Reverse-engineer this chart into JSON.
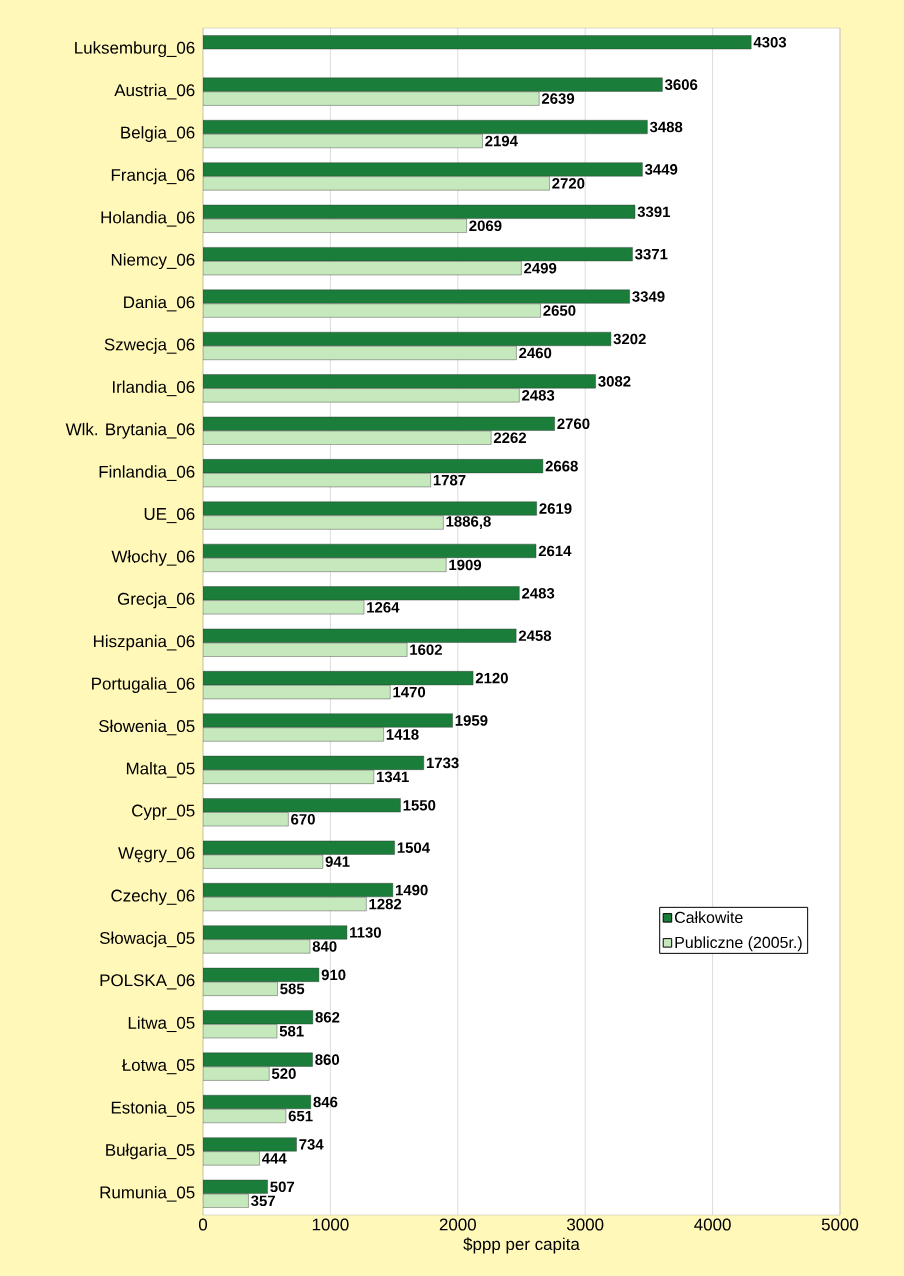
{
  "chart_data": {
    "type": "bar",
    "orientation": "horizontal",
    "categories": [
      "Luksemburg_06",
      "Austria_06",
      "Belgia_06",
      "Francja_06",
      "Holandia_06",
      "Niemcy_06",
      "Dania_06",
      "Szwecja_06",
      "Irlandia_06",
      "Wlk. Brytania_06",
      "Finlandia_06",
      "UE_06",
      "Włochy_06",
      "Grecja_06",
      "Hiszpania_06",
      "Portugalia_06",
      "Słowenia_05",
      "Malta_05",
      "Cypr_05",
      "Węgry_06",
      "Czechy_06",
      "Słowacja_05",
      "POLSKA_06",
      "Litwa_05",
      "Łotwa_05",
      "Estonia_05",
      "Bułgaria_05",
      "Rumunia_05"
    ],
    "series": [
      {
        "name": "Całkowite",
        "color": "#1b7d3a",
        "values": [
          4303,
          3606,
          3488,
          3449,
          3391,
          3371,
          3349,
          3202,
          3082,
          2760,
          2668,
          2619,
          2614,
          2483,
          2458,
          2120,
          1959,
          1733,
          1550,
          1504,
          1490,
          1130,
          910,
          862,
          860,
          846,
          734,
          507
        ],
        "value_labels": [
          "4303",
          "3606",
          "3488",
          "3449",
          "3391",
          "3371",
          "3349",
          "3202",
          "3082",
          "2760",
          "2668",
          "2619",
          "2614",
          "2483",
          "2458",
          "2120",
          "1959",
          "1733",
          "1550",
          "1504",
          "1490",
          "1130",
          "910",
          "862",
          "860",
          "846",
          "734",
          "507"
        ]
      },
      {
        "name": "Publiczne (2005r.)",
        "color": "#c6e8bd",
        "values": [
          null,
          2639,
          2194,
          2720,
          2069,
          2499,
          2650,
          2460,
          2483,
          2262,
          1787,
          1886.8,
          1909,
          1264,
          1602,
          1470,
          1418,
          1341,
          670,
          941,
          1282,
          840,
          585,
          581,
          520,
          651,
          444,
          357
        ],
        "value_labels": [
          null,
          "2639",
          "2194",
          "2720",
          "2069",
          "2499",
          "2650",
          "2460",
          "2483",
          "2262",
          "1787",
          "1886,8",
          "1909",
          "1264",
          "1602",
          "1470",
          "1418",
          "1341",
          "670",
          "941",
          "1282",
          "840",
          "585",
          "581",
          "520",
          "651",
          "444",
          "357"
        ]
      }
    ],
    "xlabel": "$ppp per capita",
    "xlim": [
      0,
      5000
    ],
    "xticks": [
      0,
      1000,
      2000,
      3000,
      4000,
      5000
    ],
    "grid": "x",
    "legend": "bottom right"
  }
}
